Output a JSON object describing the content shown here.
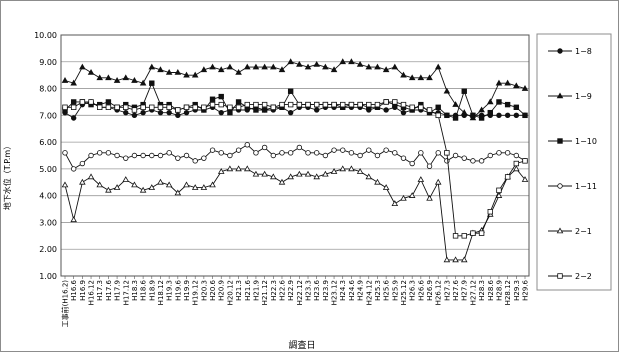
{
  "chart_data": {
    "type": "line",
    "ylabel": "地下水位（T.P.m）",
    "xlabel": "調査日",
    "ylim": [
      1.0,
      10.0
    ],
    "yticks": [
      1.0,
      2.0,
      3.0,
      4.0,
      5.0,
      6.0,
      7.0,
      8.0,
      9.0,
      10.0
    ],
    "grid": "horizontal",
    "legend_position": "right",
    "categories": [
      "工事前(H16.2)",
      "H16.6",
      "H16.9",
      "H16.12",
      "H17.3",
      "H17.6",
      "H17.9",
      "H17.12",
      "H18.3",
      "H18.6",
      "H18.9",
      "H18.12",
      "H19.3",
      "H19.6",
      "H19.9",
      "H19.12",
      "H20.3",
      "H20.6",
      "H20.9",
      "H20.12",
      "H21.3",
      "H21.6",
      "H21.9",
      "H21.12",
      "H22.3",
      "H22.6",
      "H22.9",
      "H22.12",
      "H23.3",
      "H23.6",
      "H23.9",
      "H23.12",
      "H24.3",
      "H24.6",
      "H24.9",
      "H24.12",
      "H25.3",
      "H25.6",
      "H25.9",
      "H25.12",
      "H26.3",
      "H26.6",
      "H26.9",
      "H26.12",
      "H27.3",
      "H27.6",
      "H27.9",
      "H27.12",
      "H28.3",
      "H28.6",
      "H28.9",
      "H28.12",
      "H29.3",
      "H29.6"
    ],
    "series": [
      {
        "name": "1−8",
        "marker": "circle-filled",
        "values": [
          7.1,
          6.9,
          7.4,
          7.5,
          7.3,
          7.3,
          7.2,
          7.1,
          7.0,
          7.1,
          7.2,
          7.1,
          7.1,
          7.0,
          7.1,
          7.2,
          7.2,
          7.3,
          7.1,
          7.2,
          7.2,
          7.2,
          7.3,
          7.2,
          7.2,
          7.3,
          7.1,
          7.3,
          7.3,
          7.2,
          7.3,
          7.3,
          7.3,
          7.3,
          7.3,
          7.2,
          7.3,
          7.2,
          7.3,
          7.1,
          7.2,
          7.2,
          7.1,
          7.1,
          7.0,
          7.0,
          7.0,
          7.0,
          7.0,
          7.0,
          7.0,
          7.0,
          7.0,
          7.0
        ]
      },
      {
        "name": "1−9",
        "marker": "triangle-filled",
        "values": [
          8.3,
          8.2,
          8.8,
          8.6,
          8.4,
          8.4,
          8.3,
          8.4,
          8.3,
          8.2,
          8.8,
          8.7,
          8.6,
          8.6,
          8.5,
          8.5,
          8.7,
          8.8,
          8.7,
          8.8,
          8.6,
          8.8,
          8.8,
          8.8,
          8.8,
          8.7,
          9.0,
          8.9,
          8.8,
          8.9,
          8.8,
          8.7,
          9.0,
          9.0,
          8.9,
          8.8,
          8.8,
          8.7,
          8.8,
          8.5,
          8.4,
          8.4,
          8.4,
          8.8,
          7.9,
          7.4,
          7.1,
          6.9,
          7.2,
          7.5,
          8.2,
          8.2,
          8.1,
          8.0
        ]
      },
      {
        "name": "1−10",
        "marker": "square-filled",
        "values": [
          7.2,
          7.5,
          7.5,
          7.4,
          7.4,
          7.5,
          7.3,
          7.4,
          7.3,
          7.4,
          8.2,
          7.4,
          7.4,
          7.2,
          7.3,
          7.4,
          7.2,
          7.6,
          7.7,
          7.1,
          7.5,
          7.3,
          7.2,
          7.2,
          7.3,
          7.3,
          7.9,
          7.4,
          7.4,
          7.4,
          7.4,
          7.4,
          7.3,
          7.4,
          7.4,
          7.3,
          7.3,
          7.5,
          7.4,
          7.3,
          7.2,
          7.4,
          7.1,
          7.3,
          7.0,
          6.9,
          7.9,
          7.0,
          6.9,
          7.1,
          7.5,
          7.4,
          7.3,
          7.0
        ]
      },
      {
        "name": "1−11",
        "marker": "circle-open",
        "values": [
          5.6,
          5.0,
          5.2,
          5.5,
          5.6,
          5.6,
          5.5,
          5.4,
          5.5,
          5.5,
          5.5,
          5.5,
          5.6,
          5.4,
          5.5,
          5.3,
          5.4,
          5.7,
          5.6,
          5.5,
          5.7,
          5.9,
          5.6,
          5.8,
          5.5,
          5.6,
          5.6,
          5.8,
          5.6,
          5.6,
          5.5,
          5.7,
          5.7,
          5.6,
          5.5,
          5.7,
          5.5,
          5.7,
          5.6,
          5.4,
          5.2,
          5.6,
          5.1,
          5.6,
          5.3,
          5.5,
          5.4,
          5.3,
          5.3,
          5.5,
          5.6,
          5.6,
          5.5,
          5.3
        ]
      },
      {
        "name": "2−1",
        "marker": "triangle-open",
        "values": [
          4.4,
          3.1,
          4.5,
          4.7,
          4.4,
          4.2,
          4.3,
          4.6,
          4.4,
          4.2,
          4.3,
          4.5,
          4.4,
          4.1,
          4.4,
          4.3,
          4.3,
          4.4,
          4.9,
          5.0,
          5.0,
          5.0,
          4.8,
          4.8,
          4.7,
          4.5,
          4.7,
          4.8,
          4.8,
          4.7,
          4.8,
          4.9,
          5.0,
          5.0,
          4.9,
          4.7,
          4.5,
          4.3,
          3.7,
          3.9,
          4.0,
          4.6,
          3.9,
          4.5,
          1.6,
          1.6,
          1.6,
          2.6,
          2.7,
          3.3,
          4.0,
          4.7,
          5.0,
          4.6
        ]
      },
      {
        "name": "2−2",
        "marker": "square-open",
        "values": [
          7.3,
          7.3,
          7.5,
          7.5,
          7.3,
          7.3,
          7.3,
          7.3,
          7.2,
          7.3,
          7.3,
          7.3,
          7.3,
          7.2,
          7.3,
          7.3,
          7.3,
          7.4,
          7.4,
          7.3,
          7.3,
          7.4,
          7.4,
          7.4,
          7.3,
          7.4,
          7.4,
          7.4,
          7.4,
          7.4,
          7.4,
          7.4,
          7.4,
          7.4,
          7.4,
          7.4,
          7.4,
          7.5,
          7.5,
          7.4,
          7.3,
          7.3,
          7.2,
          7.0,
          5.6,
          2.5,
          2.5,
          2.6,
          2.6,
          3.4,
          4.2,
          4.7,
          5.2,
          5.3
        ]
      }
    ]
  }
}
